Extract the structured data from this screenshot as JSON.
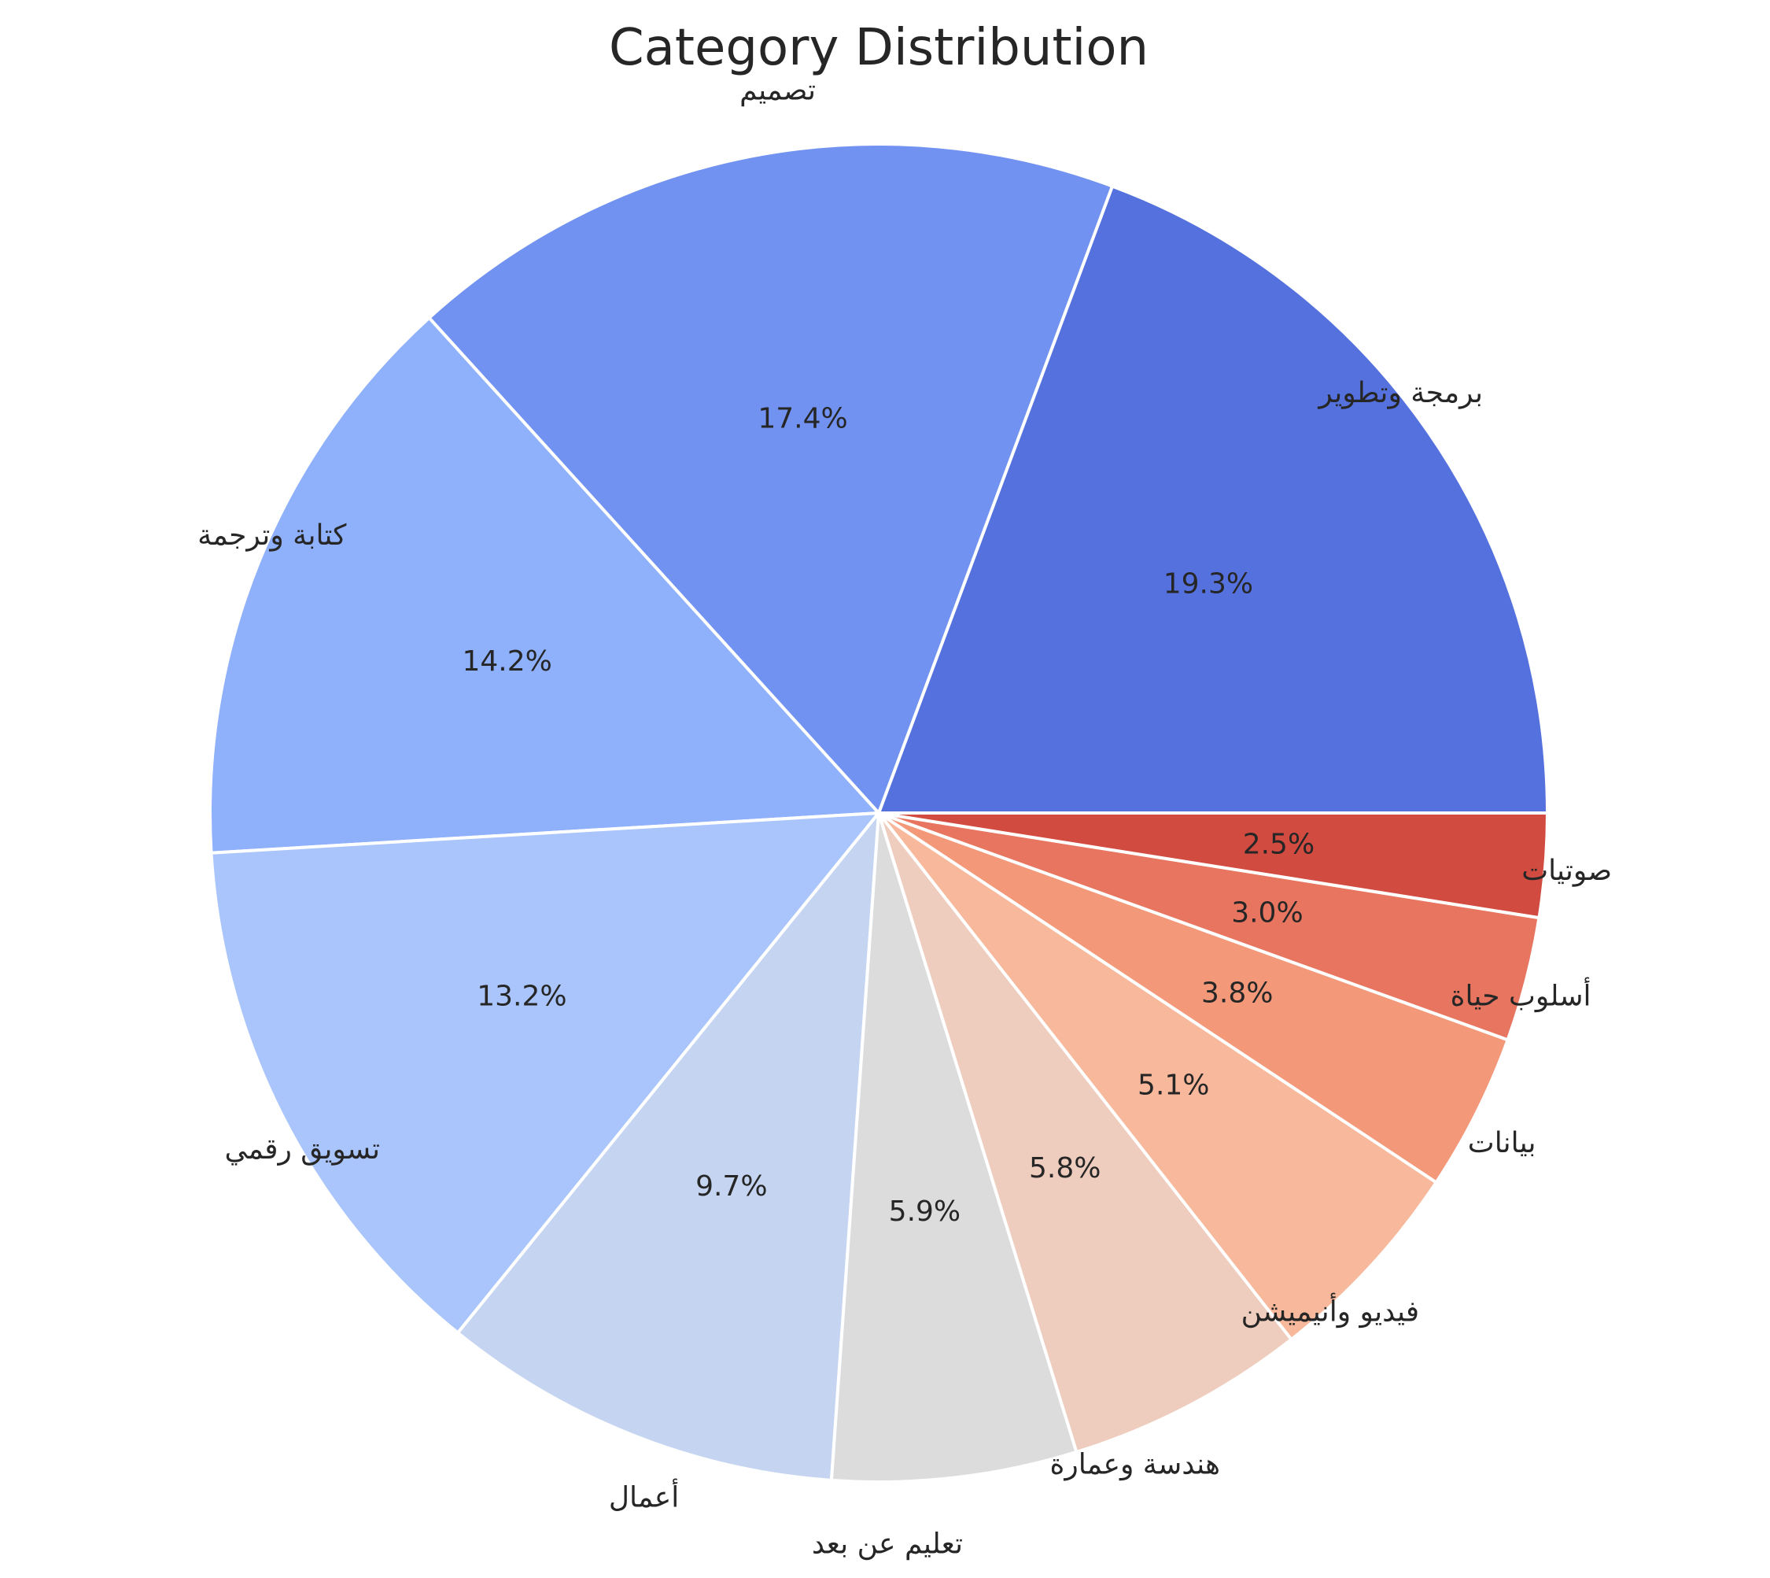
{
  "chart_data": {
    "type": "pie",
    "title": "Category Distribution",
    "categories": [
      "برمجة وتطوير",
      "تصميم",
      "كتابة وترجمة",
      "تسويق رقمي",
      "أعمال",
      "تعليم عن بعد",
      "هندسة وعمارة",
      "فيديو وأنيميشن",
      "بيانات",
      "أسلوب حياة",
      "صوتيات"
    ],
    "values": [
      19.3,
      17.4,
      14.2,
      13.2,
      9.7,
      5.9,
      5.8,
      5.1,
      3.8,
      3.0,
      2.5
    ],
    "value_labels": [
      "19.3%",
      "17.4%",
      "14.2%",
      "13.2%",
      "9.7%",
      "5.9%",
      "5.8%",
      "5.1%",
      "3.8%",
      "3.0%",
      "2.5%"
    ],
    "colors": [
      "#5571de",
      "#7192f1",
      "#8fb0fb",
      "#aac5fb",
      "#c5d5f1",
      "#dcdcdc",
      "#efcdbe",
      "#f7b89b",
      "#f3997a",
      "#e8755f",
      "#d24b40"
    ],
    "start_angle_deg": 0,
    "direction": "counterclockwise"
  }
}
